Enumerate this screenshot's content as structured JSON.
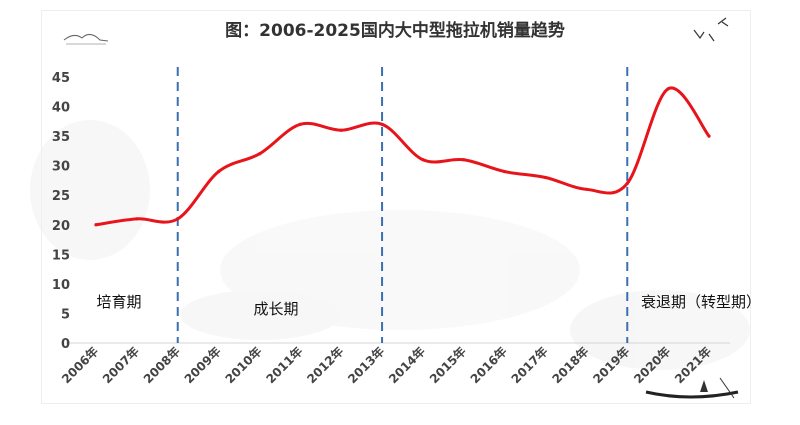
{
  "chart_data": {
    "type": "line",
    "title": "图：2006-2025国内大中型拖拉机销量趋势",
    "xlabel": "",
    "ylabel": "",
    "categories": [
      "2006年",
      "2007年",
      "2008年",
      "2009年",
      "2010年",
      "2011年",
      "2012年",
      "2013年",
      "2014年",
      "2015年",
      "2016年",
      "2017年",
      "2018年",
      "2019年",
      "2020年",
      "2021年"
    ],
    "series": [
      {
        "name": "",
        "color": "#e8141b",
        "values": [
          20,
          21,
          21,
          29,
          32,
          37,
          36,
          37,
          31,
          31,
          29,
          28,
          26,
          27,
          43,
          35
        ]
      }
    ],
    "ylim": [
      0,
      45
    ],
    "yticks": [
      0,
      5,
      10,
      15,
      20,
      25,
      30,
      35,
      40,
      45
    ],
    "grid": false,
    "legend": "none",
    "phase_dividers": [
      "2008年",
      "2013年",
      "2019年"
    ],
    "phases": [
      {
        "label": "培育期",
        "start": "2006年",
        "end": "2008年"
      },
      {
        "label": "成长期",
        "start": "2008年",
        "end": "2013年"
      },
      {
        "label": "衰退期（转型期）",
        "start": "2019年",
        "end": "2021年"
      }
    ],
    "divider_color": "#3a6fb0",
    "line_color": "#e8141b"
  }
}
